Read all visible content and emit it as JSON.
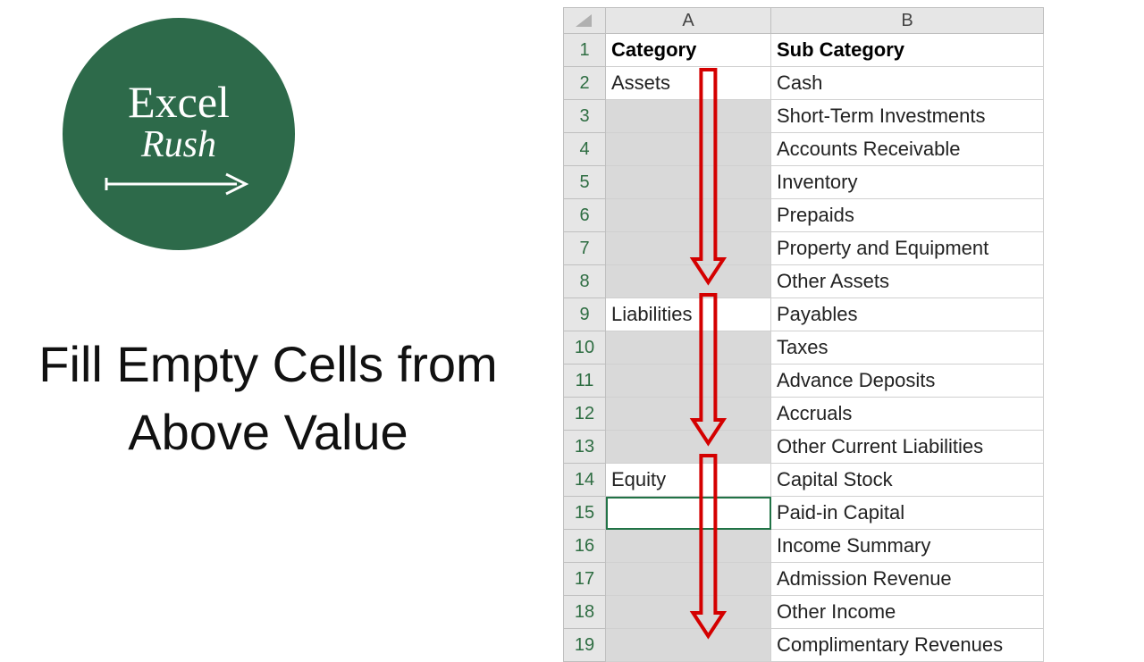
{
  "logo": {
    "line1": "Excel",
    "line2": "Rush",
    "bg_color": "#2d6a4a",
    "text_color": "#ffffff",
    "arrow_color": "#ffffff"
  },
  "title": {
    "text": "Fill Empty Cells from Above Value",
    "color": "#111111",
    "fontsize": 56
  },
  "sheet": {
    "col_letters": [
      "A",
      "B"
    ],
    "row_numbers": [
      "1",
      "2",
      "3",
      "4",
      "5",
      "6",
      "7",
      "8",
      "9",
      "10",
      "11",
      "12",
      "13",
      "14",
      "15",
      "16",
      "17",
      "18",
      "19"
    ],
    "col_widths": {
      "A": 170,
      "B": 290
    },
    "header_bg": "#e6e6e6",
    "header_border": "#bfbfbf",
    "cell_border": "#d0d0d0",
    "rowhead_text_color": "#2e6d42",
    "shade_color": "#d9d9d9",
    "active_outline_color": "#217346",
    "active_cell": "A15",
    "arrow_color": "#d40000",
    "arrows": [
      {
        "top_row": 2,
        "bottom_row": 8
      },
      {
        "top_row": 9,
        "bottom_row": 13
      },
      {
        "top_row": 14,
        "bottom_row": 19
      }
    ],
    "rows": [
      {
        "n": 1,
        "a": "Category",
        "b": "Sub Category",
        "a_shade": false,
        "hdr": true
      },
      {
        "n": 2,
        "a": "Assets",
        "b": "Cash",
        "a_shade": false
      },
      {
        "n": 3,
        "a": "",
        "b": "Short-Term Investments",
        "a_shade": true
      },
      {
        "n": 4,
        "a": "",
        "b": "Accounts Receivable",
        "a_shade": true
      },
      {
        "n": 5,
        "a": "",
        "b": "Inventory",
        "a_shade": true
      },
      {
        "n": 6,
        "a": "",
        "b": "Prepaids",
        "a_shade": true
      },
      {
        "n": 7,
        "a": "",
        "b": "Property and Equipment",
        "a_shade": true
      },
      {
        "n": 8,
        "a": "",
        "b": "Other Assets",
        "a_shade": true
      },
      {
        "n": 9,
        "a": "Liabilities",
        "b": "Payables",
        "a_shade": false
      },
      {
        "n": 10,
        "a": "",
        "b": "Taxes",
        "a_shade": true
      },
      {
        "n": 11,
        "a": "",
        "b": "Advance Deposits",
        "a_shade": true
      },
      {
        "n": 12,
        "a": "",
        "b": "Accruals",
        "a_shade": true
      },
      {
        "n": 13,
        "a": "",
        "b": "Other Current Liabilities",
        "a_shade": true
      },
      {
        "n": 14,
        "a": "Equity",
        "b": "Capital Stock",
        "a_shade": false
      },
      {
        "n": 15,
        "a": "",
        "b": "Paid-in Capital",
        "a_shade": false,
        "active": true
      },
      {
        "n": 16,
        "a": "",
        "b": "Income Summary",
        "a_shade": true
      },
      {
        "n": 17,
        "a": "",
        "b": "Admission Revenue",
        "a_shade": true
      },
      {
        "n": 18,
        "a": "",
        "b": "Other Income",
        "a_shade": true
      },
      {
        "n": 19,
        "a": "",
        "b": "Complimentary Revenues",
        "a_shade": true
      }
    ]
  }
}
